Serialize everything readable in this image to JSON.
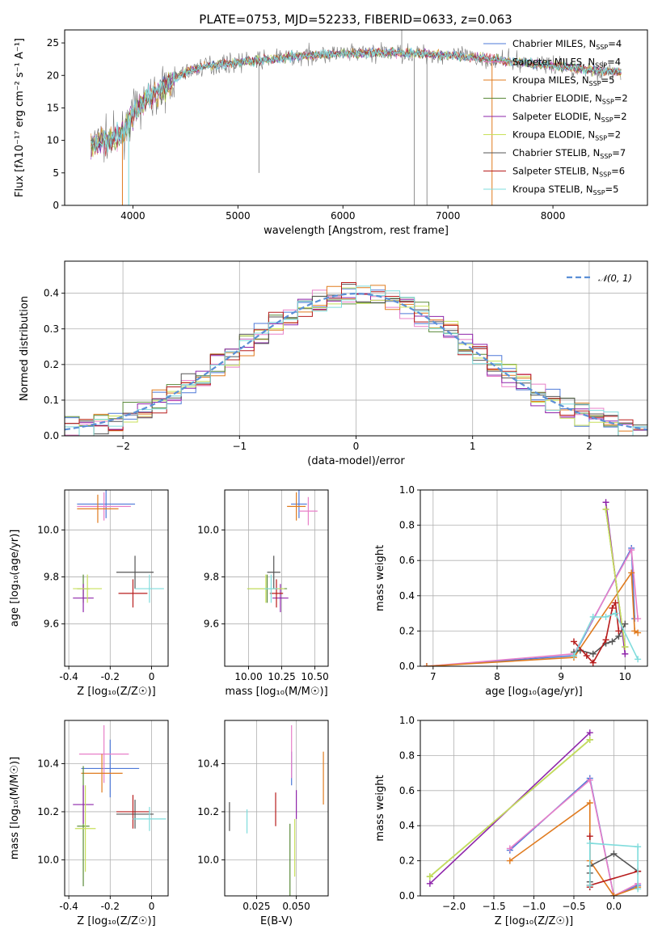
{
  "figure_title": "PLATE=0753, MJD=52233, FIBERID=0633, z=0.063",
  "colors": {
    "Chabrier MILES": "#4e79d8",
    "Salpeter MILES": "#e87fc8",
    "Kroupa MILES": "#e07b1f",
    "Chabrier ELODIE": "#5a8a3a",
    "Salpeter ELODIE": "#8e24aa",
    "Kroupa ELODIE": "#c8e05a",
    "Chabrier STELIB": "#555555",
    "Salpeter STELIB": "#b71c1c",
    "Kroupa STELIB": "#7fdcdc",
    "normal": "#5b8fd6",
    "data": "#777777"
  },
  "chart_data": [
    {
      "id": "spectrum",
      "type": "line",
      "xlabel": "wavelength [Angstrom, rest frame]",
      "ylabel": "Flux [fλ10⁻¹⁷ erg cm⁻² s⁻¹ A⁻¹]",
      "xlim": [
        3350,
        8900
      ],
      "ylim": [
        0,
        27
      ],
      "xticks": [
        4000,
        5000,
        6000,
        7000,
        8000
      ],
      "yticks": [
        0,
        5,
        10,
        15,
        20,
        25
      ],
      "continuum": {
        "x": [
          3600,
          3700,
          3800,
          3900,
          4000,
          4100,
          4200,
          4300,
          4400,
          4500,
          4700,
          5000,
          5300,
          5600,
          5900,
          6200,
          6500,
          6800,
          7100,
          7400,
          7700,
          8000,
          8300,
          8600
        ],
        "y": [
          9,
          10,
          10,
          11,
          14,
          16,
          17,
          18,
          19.5,
          20.5,
          21.5,
          22,
          22.5,
          23,
          23.3,
          23.5,
          23.5,
          23.3,
          23,
          22.5,
          22,
          21.5,
          21,
          20.5
        ]
      },
      "legend": [
        {
          "name": "Chabrier MILES",
          "nssp": "4"
        },
        {
          "name": "Salpeter MILES",
          "nssp": "4"
        },
        {
          "name": "Kroupa MILES",
          "nssp": "5"
        },
        {
          "name": "Chabrier ELODIE",
          "nssp": "2"
        },
        {
          "name": "Salpeter ELODIE",
          "nssp": "2"
        },
        {
          "name": "Kroupa ELODIE",
          "nssp": "2"
        },
        {
          "name": "Chabrier STELIB",
          "nssp": "7"
        },
        {
          "name": "Salpeter STELIB",
          "nssp": "6"
        },
        {
          "name": "Kroupa STELIB",
          "nssp": "5"
        }
      ],
      "legend_placement": "right"
    },
    {
      "id": "residuals",
      "type": "line",
      "xlabel": "(data-model)/error",
      "ylabel": "Normed distribution",
      "xlim": [
        -2.5,
        2.5
      ],
      "ylim": [
        0,
        0.49
      ],
      "xticks": [
        -2,
        -1,
        0,
        1,
        2
      ],
      "xtick_labels": [
        "−2",
        "−1",
        "0",
        "1",
        "2"
      ],
      "yticks": [
        0.0,
        0.1,
        0.2,
        0.3,
        0.4
      ],
      "grid": true,
      "legend": [
        {
          "name": "𝒩(0, 1)"
        }
      ],
      "legend_placement": "top-right",
      "bin_width": 0.125
    },
    {
      "id": "age-vs-Z",
      "type": "scatter",
      "xlabel": "Z [log₁₀(Z/Z☉)]",
      "ylabel": "age  [log₁₀(age/yr)]",
      "xlim": [
        -0.42,
        0.08
      ],
      "ylim": [
        9.42,
        10.17
      ],
      "xticks": [
        -0.4,
        -0.2,
        0.0
      ],
      "yticks": [
        9.6,
        9.8,
        10.0
      ],
      "grid": true,
      "points": [
        {
          "series": "Chabrier MILES",
          "x": -0.22,
          "y": 10.11,
          "xerr": 0.14,
          "yerr": 0.0
        },
        {
          "series": "Salpeter MILES",
          "x": -0.23,
          "y": 10.1,
          "xerr": 0.13,
          "yerr": 0.0
        },
        {
          "series": "Kroupa MILES",
          "x": -0.26,
          "y": 10.09,
          "xerr": 0.1,
          "yerr": 0.0
        },
        {
          "series": "Chabrier ELODIE",
          "x": -0.33,
          "y": 9.75,
          "xerr": 0.03,
          "yerr": 0.0
        },
        {
          "series": "Salpeter ELODIE",
          "x": -0.33,
          "y": 9.71,
          "xerr": 0.05,
          "yerr": 0.0
        },
        {
          "series": "Kroupa ELODIE",
          "x": -0.31,
          "y": 9.75,
          "xerr": 0.07,
          "yerr": 0.0
        },
        {
          "series": "Chabrier STELIB",
          "x": -0.08,
          "y": 9.82,
          "xerr": 0.09,
          "yerr": 0.07
        },
        {
          "series": "Salpeter STELIB",
          "x": -0.09,
          "y": 9.73,
          "xerr": 0.07,
          "yerr": 0.0
        },
        {
          "series": "Kroupa STELIB",
          "x": -0.01,
          "y": 9.75,
          "xerr": 0.07,
          "yerr": 0.0
        }
      ]
    },
    {
      "id": "age-vs-mass",
      "type": "scatter",
      "xlabel": "mass [log₁₀(M/M☉)]",
      "ylabel": "",
      "xlim": [
        9.82,
        10.6
      ],
      "ylim": [
        9.42,
        10.17
      ],
      "xticks": [
        10.0,
        10.25,
        10.5
      ],
      "xtick_labels": [
        "10.00",
        "10.25",
        "10.50"
      ],
      "yticks": [
        9.6,
        9.8,
        10.0
      ],
      "grid": true,
      "points": [
        {
          "series": "Chabrier MILES",
          "x": 10.38,
          "y": 10.11,
          "xerr": 0.06,
          "yerr": 0.0
        },
        {
          "series": "Salpeter MILES",
          "x": 10.45,
          "y": 10.08,
          "xerr": 0.07,
          "yerr": 0.0
        },
        {
          "series": "Kroupa MILES",
          "x": 10.36,
          "y": 10.1,
          "xerr": 0.07,
          "yerr": 0.0
        },
        {
          "series": "Chabrier ELODIE",
          "x": 10.14,
          "y": 9.75,
          "xerr": 0.15,
          "yerr": 0.0
        },
        {
          "series": "Salpeter ELODIE",
          "x": 10.24,
          "y": 9.71,
          "xerr": 0.06,
          "yerr": 0.0
        },
        {
          "series": "Kroupa ELODIE",
          "x": 10.13,
          "y": 9.75,
          "xerr": 0.14,
          "yerr": 0.0
        },
        {
          "series": "Chabrier STELIB",
          "x": 10.19,
          "y": 9.82,
          "xerr": 0.05,
          "yerr": 0.07
        },
        {
          "series": "Salpeter STELIB",
          "x": 10.21,
          "y": 9.73,
          "xerr": 0.05,
          "yerr": 0.0
        },
        {
          "series": "Kroupa STELIB",
          "x": 10.17,
          "y": 9.75,
          "xerr": 0.05,
          "yerr": 0.0
        }
      ]
    },
    {
      "id": "weight-vs-age",
      "type": "line",
      "xlabel": "age  [log₁₀(age/yr)]",
      "ylabel": "mass weight",
      "xlim": [
        6.8,
        10.35
      ],
      "ylim": [
        0.0,
        1.0
      ],
      "xticks": [
        7,
        8,
        9,
        10
      ],
      "yticks": [
        0.0,
        0.2,
        0.4,
        0.6,
        0.8,
        1.0
      ],
      "grid": true,
      "series": [
        {
          "name": "Chabrier MILES",
          "x": [
            6.9,
            9.2,
            10.1,
            10.15
          ],
          "y": [
            0.0,
            0.06,
            0.67,
            0.27
          ]
        },
        {
          "name": "Salpeter MILES",
          "x": [
            6.9,
            9.2,
            10.1,
            10.2
          ],
          "y": [
            0.0,
            0.07,
            0.66,
            0.27
          ]
        },
        {
          "name": "Kroupa MILES",
          "x": [
            6.9,
            9.2,
            10.1,
            10.15,
            10.2
          ],
          "y": [
            0.0,
            0.05,
            0.53,
            0.2,
            0.19
          ]
        },
        {
          "name": "Chabrier ELODIE",
          "x": [
            9.7,
            10.0
          ],
          "y": [
            0.89,
            0.11
          ]
        },
        {
          "name": "Salpeter ELODIE",
          "x": [
            9.7,
            10.0
          ],
          "y": [
            0.93,
            0.07
          ]
        },
        {
          "name": "Kroupa ELODIE",
          "x": [
            9.7,
            10.0
          ],
          "y": [
            0.89,
            0.11
          ]
        },
        {
          "name": "Chabrier STELIB",
          "x": [
            9.2,
            9.3,
            9.5,
            9.7,
            9.8,
            9.9,
            10.0
          ],
          "y": [
            0.08,
            0.09,
            0.07,
            0.13,
            0.14,
            0.17,
            0.24
          ]
        },
        {
          "name": "Salpeter STELIB",
          "x": [
            9.2,
            9.4,
            9.5,
            9.7,
            9.8,
            9.85,
            9.9
          ],
          "y": [
            0.14,
            0.06,
            0.02,
            0.15,
            0.33,
            0.36,
            0.2
          ]
        },
        {
          "name": "Kroupa STELIB",
          "x": [
            9.2,
            9.5,
            9.7,
            9.85,
            10.2
          ],
          "y": [
            0.06,
            0.28,
            0.28,
            0.3,
            0.04
          ]
        }
      ]
    },
    {
      "id": "mass-vs-Z",
      "type": "scatter",
      "xlabel": "Z [log₁₀(Z/Z☉)]",
      "ylabel": "mass [log₁₀(M/M☉)]",
      "xlim": [
        -0.42,
        0.08
      ],
      "ylim": [
        9.85,
        10.58
      ],
      "xticks": [
        -0.4,
        -0.2,
        0.0
      ],
      "yticks": [
        10.0,
        10.2,
        10.4
      ],
      "grid": true,
      "points": [
        {
          "series": "Chabrier MILES",
          "x": -0.2,
          "y": 10.38,
          "xerr": 0.14,
          "yerr": 0.12
        },
        {
          "series": "Salpeter MILES",
          "x": -0.23,
          "y": 10.44,
          "xerr": 0.12,
          "yerr": 0.12
        },
        {
          "series": "Kroupa MILES",
          "x": -0.24,
          "y": 10.36,
          "xerr": 0.1,
          "yerr": 0.08
        },
        {
          "series": "Chabrier ELODIE",
          "x": -0.33,
          "y": 10.14,
          "xerr": 0.03,
          "yerr": 0.25
        },
        {
          "series": "Salpeter ELODIE",
          "x": -0.33,
          "y": 10.23,
          "xerr": 0.05,
          "yerr": 0.08
        },
        {
          "series": "Kroupa ELODIE",
          "x": -0.32,
          "y": 10.13,
          "xerr": 0.05,
          "yerr": 0.18
        },
        {
          "series": "Chabrier STELIB",
          "x": -0.08,
          "y": 10.19,
          "xerr": 0.09,
          "yerr": 0.06
        },
        {
          "series": "Salpeter STELIB",
          "x": -0.09,
          "y": 10.2,
          "xerr": 0.08,
          "yerr": 0.07
        },
        {
          "series": "Kroupa STELIB",
          "x": -0.01,
          "y": 10.17,
          "xerr": 0.08,
          "yerr": 0.05
        }
      ]
    },
    {
      "id": "mass-vs-EBV",
      "type": "scatter",
      "xlabel": "E(B-V)",
      "ylabel": "",
      "xlim": [
        0.005,
        0.07
      ],
      "ylim": [
        9.85,
        10.58
      ],
      "xticks": [
        0.025,
        0.05
      ],
      "xtick_labels": [
        "0.025",
        "0.050"
      ],
      "yticks": [
        10.0,
        10.2,
        10.4
      ],
      "grid": true,
      "points": [
        {
          "series": "Chabrier MILES",
          "x": 0.047,
          "y": 10.38,
          "xerr": 0.0,
          "yerr": 0.07
        },
        {
          "series": "Salpeter MILES",
          "x": 0.047,
          "y": 10.45,
          "xerr": 0.0,
          "yerr": 0.11
        },
        {
          "series": "Kroupa MILES",
          "x": 0.067,
          "y": 10.34,
          "xerr": 0.0,
          "yerr": 0.11
        },
        {
          "series": "Chabrier ELODIE",
          "x": 0.046,
          "y": 10.0,
          "xerr": 0.0,
          "yerr": 0.15
        },
        {
          "series": "Salpeter ELODIE",
          "x": 0.05,
          "y": 10.23,
          "xerr": 0.0,
          "yerr": 0.06
        },
        {
          "series": "Kroupa ELODIE",
          "x": 0.049,
          "y": 10.05,
          "xerr": 0.0,
          "yerr": 0.12
        },
        {
          "series": "Chabrier STELIB",
          "x": 0.008,
          "y": 10.18,
          "xerr": 0.0,
          "yerr": 0.06
        },
        {
          "series": "Salpeter STELIB",
          "x": 0.037,
          "y": 10.21,
          "xerr": 0.0,
          "yerr": 0.07
        },
        {
          "series": "Kroupa STELIB",
          "x": 0.019,
          "y": 10.16,
          "xerr": 0.0,
          "yerr": 0.05
        }
      ]
    },
    {
      "id": "weight-vs-Z",
      "type": "line",
      "xlabel": "Z [log₁₀(Z/Z☉)]",
      "ylabel": "mass weight",
      "xlim": [
        -2.42,
        0.42
      ],
      "ylim": [
        0.0,
        1.0
      ],
      "xticks": [
        -2.0,
        -1.5,
        -1.0,
        -0.5,
        0.0
      ],
      "xtick_labels": [
        "−2.0",
        "−1.5",
        "−1.0",
        "−0.5",
        "0.0"
      ],
      "yticks": [
        0.0,
        0.2,
        0.4,
        0.6,
        0.8,
        1.0
      ],
      "grid": true,
      "series": [
        {
          "name": "Chabrier MILES",
          "x": [
            -1.3,
            -0.3,
            0.0,
            0.3
          ],
          "y": [
            0.26,
            0.67,
            0.0,
            0.06
          ]
        },
        {
          "name": "Salpeter MILES",
          "x": [
            -1.3,
            -0.3,
            0.0,
            0.3
          ],
          "y": [
            0.27,
            0.66,
            0.0,
            0.07
          ]
        },
        {
          "name": "Kroupa MILES",
          "x": [
            -1.3,
            -0.3,
            -0.3,
            0.0,
            0.3
          ],
          "y": [
            0.2,
            0.53,
            0.2,
            0.0,
            0.05
          ]
        },
        {
          "name": "Chabrier ELODIE",
          "x": [
            -2.3,
            -0.3
          ],
          "y": [
            0.11,
            0.89
          ]
        },
        {
          "name": "Salpeter ELODIE",
          "x": [
            -2.3,
            -0.3
          ],
          "y": [
            0.07,
            0.93
          ]
        },
        {
          "name": "Kroupa ELODIE",
          "x": [
            -2.3,
            -0.3
          ],
          "y": [
            0.11,
            0.89
          ]
        },
        {
          "name": "Chabrier STELIB",
          "x": [
            -0.3,
            -0.3,
            -0.3,
            0.0,
            0.3
          ],
          "y": [
            0.08,
            0.13,
            0.17,
            0.24,
            0.14
          ]
        },
        {
          "name": "Salpeter STELIB",
          "x": [
            -0.3,
            -0.3,
            -0.3,
            0.3
          ],
          "y": [
            0.34,
            0.05,
            0.06,
            0.14
          ]
        },
        {
          "name": "Kroupa STELIB",
          "x": [
            -0.3,
            -0.3,
            0.3,
            0.3
          ],
          "y": [
            0.06,
            0.3,
            0.28,
            0.04
          ]
        }
      ]
    }
  ]
}
